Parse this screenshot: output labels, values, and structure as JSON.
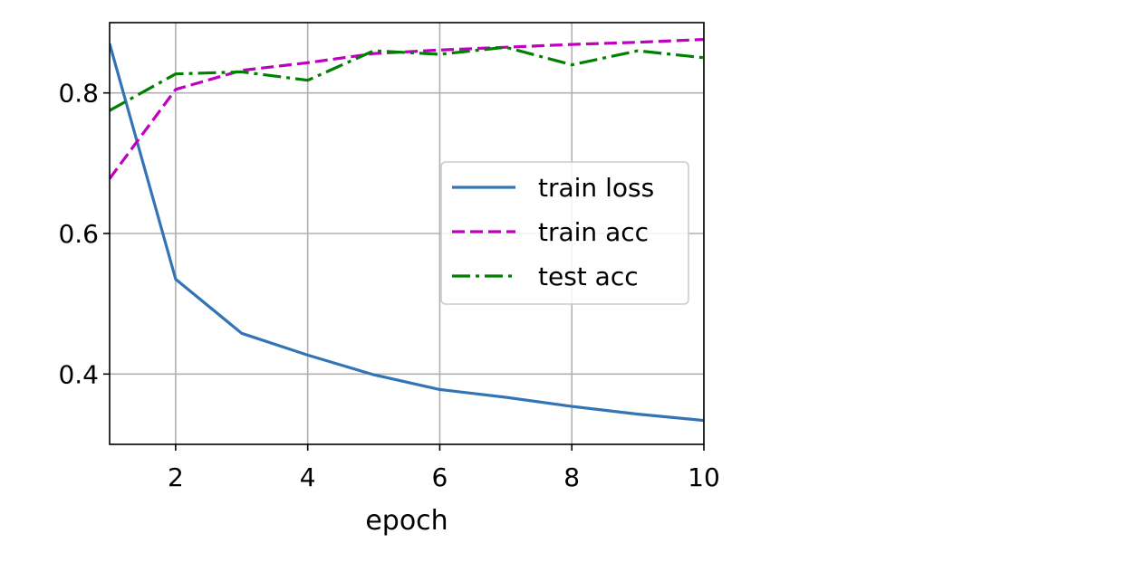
{
  "chart_data": {
    "type": "line",
    "title": "",
    "xlabel": "epoch",
    "ylabel": "",
    "xlim": [
      1,
      10
    ],
    "ylim": [
      0.3,
      0.9
    ],
    "xticks": [
      2,
      4,
      6,
      8,
      10
    ],
    "yticks": [
      0.4,
      0.6,
      0.8
    ],
    "xtick_labels": [
      "2",
      "4",
      "6",
      "8",
      "10"
    ],
    "ytick_labels": [
      "0.4",
      "0.6",
      "0.8"
    ],
    "grid": true,
    "legend_position": "center-right",
    "x": [
      1,
      2,
      3,
      4,
      5,
      6,
      7,
      8,
      9,
      10
    ],
    "series": [
      {
        "name": "train loss",
        "color": "#3274b5",
        "dash": "solid",
        "values": [
          0.87,
          0.535,
          0.458,
          0.427,
          0.399,
          0.378,
          0.367,
          0.354,
          0.343,
          0.334
        ]
      },
      {
        "name": "train acc",
        "color": "#bf00bf",
        "dash": "dashed",
        "values": [
          0.678,
          0.805,
          0.832,
          0.843,
          0.856,
          0.861,
          0.865,
          0.869,
          0.872,
          0.876
        ]
      },
      {
        "name": "test acc",
        "color": "#008000",
        "dash": "dashdot",
        "values": [
          0.775,
          0.827,
          0.83,
          0.818,
          0.86,
          0.855,
          0.865,
          0.84,
          0.86,
          0.85
        ]
      }
    ]
  }
}
